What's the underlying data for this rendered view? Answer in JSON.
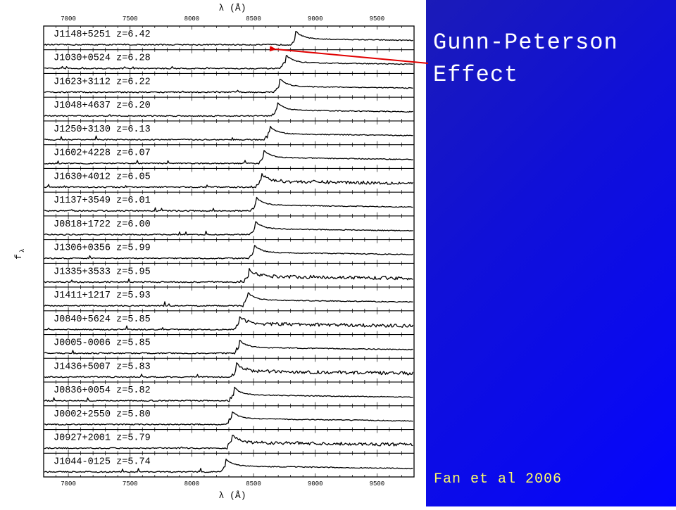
{
  "slide": {
    "title_line1": "Gunn-Peterson",
    "title_line2": "Effect",
    "caption": "Fan et al 2006",
    "colors": {
      "panel": "#0a0aee",
      "title": "#ffffff",
      "caption": "#ffff66",
      "arrow": "#e00000"
    }
  },
  "chart_data": {
    "type": "line",
    "xlabel": "λ (Å)",
    "ylabel": "f",
    "ylabel_subscript": "λ",
    "xlim": [
      6800,
      9800
    ],
    "x_ticks": [
      7000,
      7500,
      8000,
      8500,
      9000,
      9500
    ],
    "x_tick_labels": [
      "7000",
      "7500",
      "8000",
      "8500",
      "9000",
      "9500"
    ],
    "spectra": [
      {
        "label": "J1148+5251 z=6.42",
        "z": 6.42,
        "edge": 8840,
        "noisy": false
      },
      {
        "label": "J1030+0524 z=6.28",
        "z": 6.28,
        "edge": 8760,
        "noisy": false
      },
      {
        "label": "J1623+3112 z=6.22",
        "z": 6.22,
        "edge": 8710,
        "noisy": false
      },
      {
        "label": "J1048+4637 z=6.20",
        "z": 6.2,
        "edge": 8690,
        "noisy": false
      },
      {
        "label": "J1250+3130 z=6.13",
        "z": 6.13,
        "edge": 8630,
        "noisy": false
      },
      {
        "label": "J1602+4228 z=6.07",
        "z": 6.07,
        "edge": 8580,
        "noisy": false
      },
      {
        "label": "J1630+4012 z=6.05",
        "z": 6.05,
        "edge": 8560,
        "noisy": true
      },
      {
        "label": "J1137+3549 z=6.01",
        "z": 6.01,
        "edge": 8520,
        "noisy": false
      },
      {
        "label": "J0818+1722 z=6.00",
        "z": 6.0,
        "edge": 8510,
        "noisy": false
      },
      {
        "label": "J1306+0356 z=5.99",
        "z": 5.99,
        "edge": 8500,
        "noisy": false
      },
      {
        "label": "J1335+3533 z=5.95",
        "z": 5.95,
        "edge": 8460,
        "noisy": true
      },
      {
        "label": "J1411+1217 z=5.93",
        "z": 5.93,
        "edge": 8450,
        "noisy": false
      },
      {
        "label": "J0840+5624 z=5.85",
        "z": 5.85,
        "edge": 8380,
        "noisy": true
      },
      {
        "label": "J0005-0006 z=5.85",
        "z": 5.85,
        "edge": 8380,
        "noisy": false
      },
      {
        "label": "J1436+5007 z=5.83",
        "z": 5.83,
        "edge": 8360,
        "noisy": true
      },
      {
        "label": "J0836+0054 z=5.82",
        "z": 5.82,
        "edge": 8340,
        "noisy": false
      },
      {
        "label": "J0002+2550 z=5.80",
        "z": 5.8,
        "edge": 8320,
        "noisy": false
      },
      {
        "label": "J0927+2001 z=5.79",
        "z": 5.79,
        "edge": 8320,
        "noisy": true
      },
      {
        "label": "J1044-0125 z=5.74",
        "z": 5.74,
        "edge": 8270,
        "noisy": false
      }
    ]
  }
}
